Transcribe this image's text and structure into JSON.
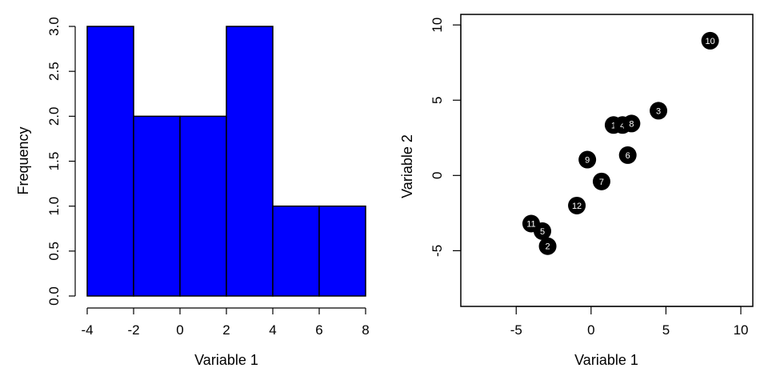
{
  "chart_data": [
    {
      "type": "bar",
      "subtype": "histogram",
      "xlabel": "Variable 1",
      "ylabel": "Frequency",
      "bins": [
        {
          "x0": -4,
          "x1": -2,
          "count": 3
        },
        {
          "x0": -2,
          "x1": 0,
          "count": 2
        },
        {
          "x0": 0,
          "x1": 2,
          "count": 2
        },
        {
          "x0": 2,
          "x1": 4,
          "count": 3
        },
        {
          "x0": 4,
          "x1": 6,
          "count": 1
        },
        {
          "x0": 6,
          "x1": 8,
          "count": 1
        }
      ],
      "xlim": [
        -4,
        8
      ],
      "ylim": [
        0,
        3
      ],
      "xticks": [
        "-4",
        "-2",
        "0",
        "2",
        "4",
        "6",
        "8"
      ],
      "yticks": [
        "0.0",
        "0.5",
        "1.0",
        "1.5",
        "2.0",
        "2.5",
        "3.0"
      ],
      "bar_color": "#0000ff",
      "grid": false
    },
    {
      "type": "scatter",
      "xlabel": "Variable 1",
      "ylabel": "Variable 2",
      "xlim": [
        -8.7,
        10.8
      ],
      "ylim": [
        -8.7,
        10.7
      ],
      "xticks": [
        "-5",
        "0",
        "5",
        "10"
      ],
      "yticks": [
        "-5",
        "0",
        "5",
        "10"
      ],
      "point_color": "#000000",
      "label_color": "#ffffff",
      "grid": false,
      "points": [
        {
          "label": "1",
          "x": 1.5,
          "y": 3.35
        },
        {
          "label": "2",
          "x": -2.9,
          "y": -4.7
        },
        {
          "label": "3",
          "x": 4.5,
          "y": 4.3
        },
        {
          "label": "4",
          "x": 2.1,
          "y": 3.35
        },
        {
          "label": "5",
          "x": -3.25,
          "y": -3.7
        },
        {
          "label": "6",
          "x": 2.45,
          "y": 1.35
        },
        {
          "label": "7",
          "x": 0.7,
          "y": -0.4
        },
        {
          "label": "8",
          "x": 2.7,
          "y": 3.45
        },
        {
          "label": "9",
          "x": -0.25,
          "y": 1.05
        },
        {
          "label": "10",
          "x": 7.95,
          "y": 8.95
        },
        {
          "label": "11",
          "x": -4.0,
          "y": -3.2
        },
        {
          "label": "12",
          "x": -0.95,
          "y": -2.0
        }
      ]
    }
  ]
}
